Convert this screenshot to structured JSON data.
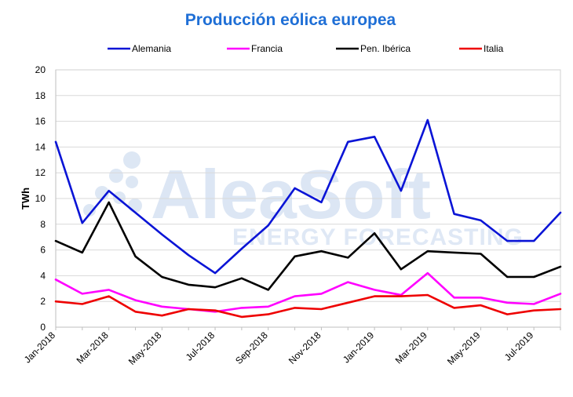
{
  "chart_data": {
    "type": "line",
    "title": "Producción eólica europea",
    "ylabel": "TWh",
    "xlabel": "",
    "ylim": [
      0,
      20
    ],
    "yticks": [
      0,
      2,
      4,
      6,
      8,
      10,
      12,
      14,
      16,
      18,
      20
    ],
    "grid": true,
    "legend_position": "top",
    "categories": [
      "Jan-2018",
      "Feb-2018",
      "Mar-2018",
      "Apr-2018",
      "May-2018",
      "Jun-2018",
      "Jul-2018",
      "Aug-2018",
      "Sep-2018",
      "Oct-2018",
      "Nov-2018",
      "Dec-2018",
      "Jan-2019",
      "Feb-2019",
      "Mar-2019",
      "Apr-2019",
      "May-2019",
      "Jun-2019",
      "Jul-2019",
      "Aug-2019"
    ],
    "tick_labels": [
      "Jan-2018",
      "Mar-2018",
      "May-2018",
      "Jul-2018",
      "Sep-2018",
      "Nov-2018",
      "Jan-2019",
      "Mar-2019",
      "May-2019",
      "Jul-2019"
    ],
    "series": [
      {
        "name": "Alemania",
        "color": "#0a14d6",
        "values": [
          14.4,
          8.1,
          10.6,
          8.9,
          7.2,
          5.6,
          4.2,
          6.1,
          7.9,
          10.8,
          9.7,
          14.4,
          14.8,
          10.6,
          16.1,
          8.8,
          8.3,
          6.7,
          6.7,
          8.9
        ]
      },
      {
        "name": "Francia",
        "color": "#ff00ff",
        "values": [
          3.7,
          2.6,
          2.9,
          2.1,
          1.6,
          1.4,
          1.2,
          1.5,
          1.6,
          2.4,
          2.6,
          3.5,
          2.9,
          2.5,
          4.2,
          2.3,
          2.3,
          1.9,
          1.8,
          2.6
        ]
      },
      {
        "name": "Pen. Ibérica",
        "color": "#000000",
        "values": [
          6.7,
          5.8,
          9.7,
          5.5,
          3.9,
          3.3,
          3.1,
          3.8,
          2.9,
          5.5,
          5.9,
          5.4,
          7.3,
          4.5,
          5.9,
          5.8,
          5.7,
          3.9,
          3.9,
          4.7
        ]
      },
      {
        "name": "Italia",
        "color": "#ee0000",
        "values": [
          2.0,
          1.8,
          2.4,
          1.2,
          0.9,
          1.4,
          1.3,
          0.8,
          1.0,
          1.5,
          1.4,
          1.9,
          2.4,
          2.4,
          2.5,
          1.5,
          1.7,
          1.0,
          1.3,
          1.4
        ]
      }
    ]
  },
  "watermark": {
    "brand": "AleaSoft",
    "tagline": "ENERGY FORECASTING"
  }
}
